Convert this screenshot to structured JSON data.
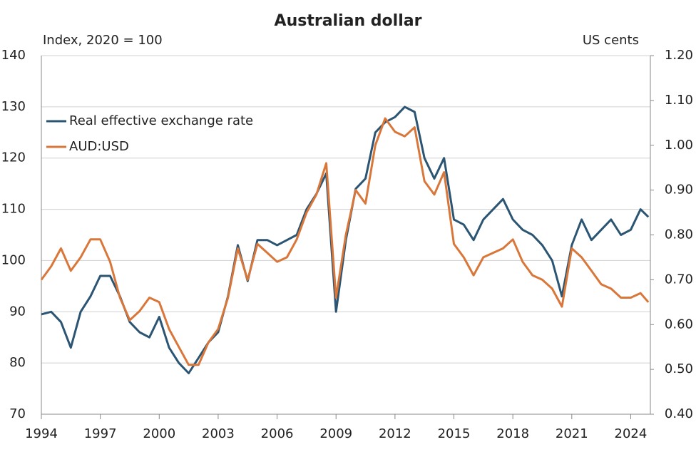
{
  "chart_data": {
    "type": "line",
    "title": "Australian dollar",
    "y_label": "Index, 2020 = 100",
    "y2_label": "US cents",
    "x": [
      1994,
      1994.5,
      1995,
      1995.5,
      1996,
      1996.5,
      1997,
      1997.5,
      1998,
      1998.5,
      1999,
      1999.5,
      2000,
      2000.5,
      2001,
      2001.5,
      2002,
      2002.5,
      2003,
      2003.5,
      2004,
      2004.5,
      2005,
      2005.5,
      2006,
      2006.5,
      2007,
      2007.5,
      2008,
      2008.5,
      2009,
      2009.5,
      2010,
      2010.5,
      2011,
      2011.5,
      2012,
      2012.5,
      2013,
      2013.5,
      2014,
      2014.5,
      2015,
      2015.5,
      2016,
      2016.5,
      2017,
      2017.5,
      2018,
      2018.5,
      2019,
      2019.5,
      2020,
      2020.5,
      2021,
      2021.5,
      2022,
      2022.5,
      2023,
      2023.5,
      2024,
      2024.5,
      2024.9
    ],
    "series": [
      {
        "name": "Real effective exchange rate",
        "color": "#2b5572",
        "values": [
          89.5,
          90,
          88,
          83,
          90,
          93,
          97,
          97,
          93,
          88,
          86,
          85,
          89,
          83,
          80,
          78,
          81,
          84,
          86,
          93,
          103,
          96,
          104,
          104,
          103,
          104,
          105,
          110,
          113,
          117,
          90,
          104,
          114,
          116,
          125,
          127,
          128,
          130,
          129,
          120,
          116,
          120,
          108,
          107,
          104,
          108,
          110,
          112,
          108,
          106,
          105,
          103,
          100,
          93,
          103,
          108,
          104,
          106,
          108,
          105,
          106,
          110,
          108.5
        ]
      },
      {
        "name": "AUD:USD",
        "color": "#d9773a",
        "axis": "y2",
        "values": [
          0.7,
          0.73,
          0.77,
          0.72,
          0.75,
          0.79,
          0.79,
          0.74,
          0.66,
          0.61,
          0.63,
          0.66,
          0.65,
          0.59,
          0.55,
          0.51,
          0.51,
          0.56,
          0.59,
          0.66,
          0.77,
          0.7,
          0.78,
          0.76,
          0.74,
          0.75,
          0.79,
          0.85,
          0.89,
          0.96,
          0.66,
          0.8,
          0.9,
          0.87,
          1.0,
          1.06,
          1.03,
          1.02,
          1.04,
          0.92,
          0.89,
          0.94,
          0.78,
          0.75,
          0.71,
          0.75,
          0.76,
          0.77,
          0.79,
          0.74,
          0.71,
          0.7,
          0.68,
          0.64,
          0.77,
          0.75,
          0.72,
          0.69,
          0.68,
          0.66,
          0.66,
          0.67,
          0.65
        ]
      }
    ],
    "xlim": [
      1994,
      2025
    ],
    "xticks": [
      1994,
      1997,
      2000,
      2003,
      2006,
      2009,
      2012,
      2015,
      2018,
      2021,
      2024
    ],
    "ylim": [
      70,
      140
    ],
    "yticks": [
      70,
      80,
      90,
      100,
      110,
      120,
      130,
      140
    ],
    "y2lim": [
      0.4,
      1.2
    ],
    "y2ticks": [
      {
        "value": 0.4,
        "label": "0.40"
      },
      {
        "value": 0.5,
        "label": "0.50"
      },
      {
        "value": 0.6,
        "label": "0.60"
      },
      {
        "value": 0.7,
        "label": "0.70"
      },
      {
        "value": 0.8,
        "label": "0.80"
      },
      {
        "value": 0.9,
        "label": "0.90"
      },
      {
        "value": 1.0,
        "label": "1.00"
      },
      {
        "value": 1.1,
        "label": "1.10"
      },
      {
        "value": 1.2,
        "label": "1.20"
      }
    ],
    "grid": true,
    "legend": "upper left"
  }
}
